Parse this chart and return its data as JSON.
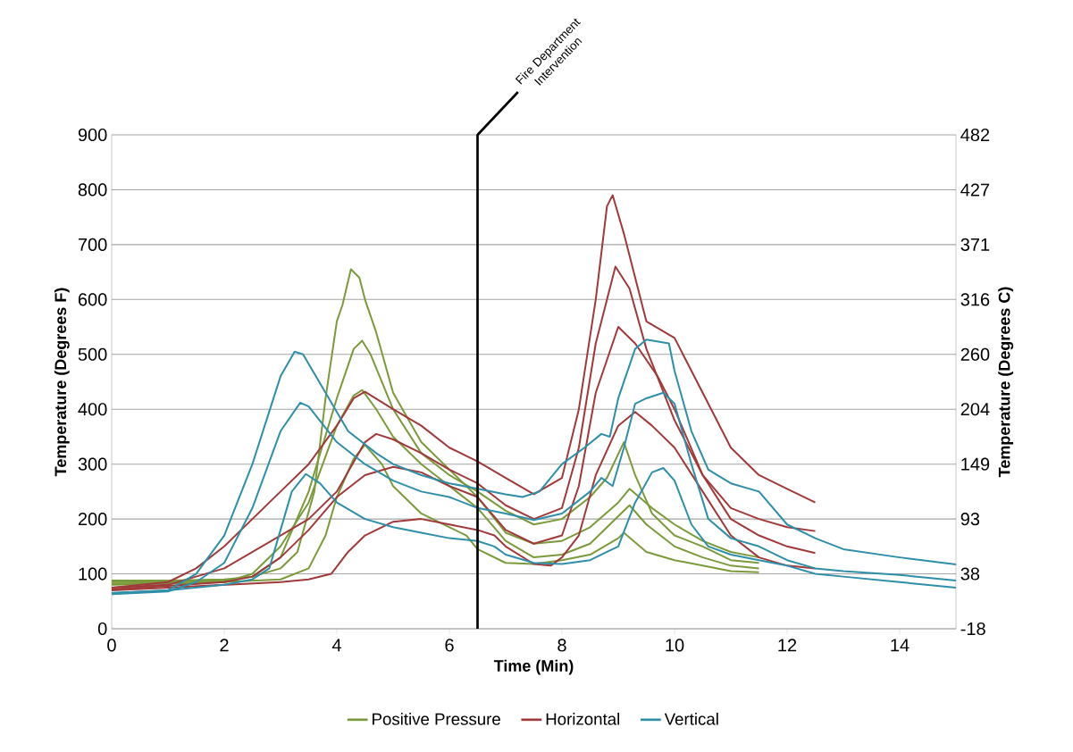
{
  "chart_data": {
    "type": "line",
    "xlabel": "Time (Min)",
    "ylabel": "Temperature (Degrees F)",
    "y2label": "Temperature (Degrees C)",
    "xlim": [
      0,
      15
    ],
    "xticks": [
      0,
      2,
      4,
      6,
      8,
      10,
      12,
      14
    ],
    "ylim": [
      0,
      900
    ],
    "yticks": [
      0,
      100,
      200,
      300,
      400,
      500,
      600,
      700,
      800,
      900
    ],
    "y2lim": [
      -17.78,
      482.22
    ],
    "y2ticks": [
      {
        "value": -17.78,
        "label": "-18"
      },
      {
        "value": 37.78,
        "label": "38"
      },
      {
        "value": 93.33,
        "label": "93"
      },
      {
        "value": 148.89,
        "label": "149"
      },
      {
        "value": 204.44,
        "label": "204"
      },
      {
        "value": 260,
        "label": "260"
      },
      {
        "value": 315.56,
        "label": "316"
      },
      {
        "value": 371.11,
        "label": "371"
      },
      {
        "value": 426.67,
        "label": "427"
      },
      {
        "value": 482.22,
        "label": "482"
      }
    ],
    "grid": "y",
    "legend": "bottom",
    "ref_lines": [
      {
        "axis": "x",
        "value": 6.5,
        "label": "Fire Department Intervention",
        "color": "#000000"
      }
    ],
    "series": [
      {
        "name": "Positive Pressure",
        "color": "#7b9a3c",
        "x": [
          0,
          1,
          2,
          2.5,
          3,
          3.3,
          3.6,
          3.8,
          4.0,
          4.1,
          4.25,
          4.4,
          4.5,
          4.7,
          5.0,
          5.5,
          6.0,
          6.5,
          7.0,
          7.5,
          8.0,
          8.5,
          9.0,
          9.2,
          9.6,
          10.0,
          10.5,
          11.0,
          11.5
        ],
        "values": [
          88,
          88,
          90,
          95,
          110,
          140,
          250,
          420,
          560,
          590,
          655,
          640,
          600,
          540,
          430,
          340,
          290,
          240,
          175,
          155,
          160,
          185,
          230,
          255,
          220,
          190,
          160,
          140,
          130
        ]
      },
      {
        "color": "#7b9a3c",
        "x": [
          0,
          1,
          2,
          2.5,
          3,
          3.5,
          4.0,
          4.3,
          4.45,
          4.6,
          5,
          5.5,
          6,
          6.5,
          7,
          7.5,
          8,
          8.5,
          8.8,
          9.1,
          9.3,
          9.6,
          10,
          10.5,
          11,
          11.5
        ],
        "values": [
          85,
          86,
          88,
          95,
          130,
          250,
          420,
          510,
          525,
          500,
          400,
          320,
          280,
          250,
          215,
          190,
          200,
          240,
          275,
          340,
          280,
          210,
          170,
          150,
          125,
          120
        ]
      },
      {
        "color": "#7b9a3c",
        "x": [
          0,
          1,
          2,
          2.5,
          3,
          3.5,
          4.0,
          4.3,
          4.45,
          4.7,
          5,
          5.5,
          6,
          6.5,
          7,
          7.5,
          8,
          8.5,
          9,
          9.2,
          9.5,
          10,
          10.5,
          11,
          11.5
        ],
        "values": [
          80,
          82,
          85,
          100,
          150,
          230,
          370,
          425,
          435,
          400,
          350,
          300,
          260,
          220,
          160,
          130,
          135,
          155,
          205,
          225,
          190,
          150,
          130,
          115,
          110
        ]
      },
      {
        "color": "#7b9a3c",
        "x": [
          0,
          1,
          2,
          3,
          3.5,
          3.8,
          4.0,
          4.3,
          4.5,
          4.8,
          5,
          5.5,
          6,
          6.3,
          6.5,
          7,
          7.5,
          8,
          8.5,
          9,
          9.1,
          9.5,
          10,
          10.5,
          11,
          11.5
        ],
        "values": [
          82,
          84,
          85,
          90,
          110,
          170,
          240,
          310,
          335,
          300,
          260,
          210,
          185,
          170,
          145,
          120,
          118,
          125,
          135,
          165,
          175,
          140,
          125,
          115,
          105,
          103
        ]
      },
      {
        "name": "Horizontal",
        "color": "#a0393a",
        "x": [
          0,
          1,
          1.5,
          2,
          2.5,
          3,
          3.5,
          4,
          4.3,
          4.5,
          5,
          5.5,
          6,
          6.5,
          7,
          7.5,
          8,
          8.3,
          8.6,
          8.8,
          8.9,
          9.1,
          9.5,
          10,
          10.5,
          11,
          11.5,
          12,
          12.5
        ],
        "values": [
          75,
          85,
          110,
          150,
          200,
          250,
          300,
          370,
          420,
          432,
          400,
          370,
          330,
          305,
          275,
          245,
          275,
          400,
          600,
          770,
          790,
          720,
          560,
          530,
          430,
          330,
          280,
          255,
          230
        ]
      },
      {
        "color": "#a0393a",
        "x": [
          0,
          1,
          2,
          2.5,
          3,
          3.5,
          4,
          4.5,
          4.7,
          5,
          5.5,
          6,
          6.5,
          7,
          7.5,
          8,
          8.3,
          8.6,
          8.95,
          9.2,
          9.5,
          10,
          10.5,
          11,
          11.5,
          12,
          12.5
        ],
        "values": [
          75,
          80,
          110,
          140,
          170,
          200,
          250,
          340,
          355,
          345,
          320,
          290,
          265,
          225,
          200,
          220,
          330,
          520,
          660,
          620,
          510,
          380,
          280,
          220,
          200,
          185,
          178
        ]
      },
      {
        "color": "#a0393a",
        "x": [
          0,
          1,
          2,
          2.5,
          3,
          3.5,
          4,
          4.5,
          5,
          5.5,
          6,
          6.5,
          7,
          7.5,
          8,
          8.3,
          8.6,
          9.0,
          9.3,
          9.7,
          10,
          10.5,
          11,
          11.5,
          12,
          12.5
        ],
        "values": [
          72,
          78,
          85,
          95,
          130,
          180,
          240,
          280,
          295,
          285,
          260,
          240,
          180,
          155,
          170,
          260,
          430,
          550,
          520,
          460,
          400,
          280,
          200,
          170,
          150,
          138
        ]
      },
      {
        "color": "#a0393a",
        "x": [
          0,
          1,
          2,
          3,
          3.5,
          3.9,
          4.2,
          4.5,
          5,
          5.5,
          6,
          6.5,
          6.8,
          7,
          7.5,
          7.8,
          8,
          8.3,
          8.6,
          9,
          9.3,
          9.6,
          10,
          10.5,
          11,
          11.5,
          12,
          12.5
        ],
        "values": [
          70,
          75,
          80,
          85,
          90,
          100,
          140,
          170,
          195,
          200,
          190,
          180,
          170,
          150,
          118,
          115,
          130,
          170,
          280,
          370,
          395,
          370,
          330,
          250,
          170,
          130,
          115,
          110
        ]
      },
      {
        "name": "Vertical",
        "color": "#2f8ea8",
        "x": [
          0,
          1,
          1.5,
          2,
          2.5,
          3,
          3.25,
          3.4,
          3.8,
          4.2,
          4.7,
          5,
          5.5,
          6,
          6.5,
          7,
          7.3,
          7.6,
          8,
          8.4,
          8.7,
          8.85,
          9,
          9.3,
          9.5,
          9.9,
          10,
          10.3,
          10.6,
          11,
          11.5,
          12,
          12.5,
          13,
          14,
          15
        ],
        "values": [
          65,
          70,
          100,
          170,
          300,
          460,
          505,
          500,
          430,
          360,
          320,
          300,
          280,
          265,
          255,
          245,
          240,
          250,
          300,
          330,
          355,
          350,
          420,
          510,
          527,
          520,
          470,
          360,
          290,
          265,
          250,
          190,
          165,
          145,
          130,
          117
        ]
      },
      {
        "color": "#2f8ea8",
        "x": [
          0,
          1,
          1.5,
          2,
          2.5,
          3,
          3.35,
          3.5,
          4,
          4.5,
          5,
          5.5,
          6,
          6.5,
          7,
          7.5,
          8,
          8.5,
          8.7,
          8.9,
          9.1,
          9.3,
          9.5,
          9.8,
          10,
          10.3,
          10.6,
          11,
          11.5,
          12,
          12.5,
          13,
          14,
          15
        ],
        "values": [
          63,
          68,
          85,
          120,
          220,
          360,
          412,
          405,
          340,
          300,
          270,
          250,
          240,
          220,
          210,
          198,
          210,
          250,
          275,
          260,
          330,
          410,
          420,
          430,
          410,
          300,
          200,
          165,
          150,
          125,
          110,
          105,
          98,
          88
        ]
      },
      {
        "color": "#2f8ea8",
        "x": [
          0,
          1,
          2,
          2.5,
          2.8,
          3,
          3.2,
          3.45,
          3.7,
          4,
          4.5,
          5,
          5.5,
          6,
          6.5,
          6.8,
          7,
          7.5,
          8,
          8.5,
          8.8,
          9,
          9.3,
          9.6,
          9.8,
          10,
          10.3,
          10.6,
          11,
          11.5,
          12,
          12.5,
          13,
          14,
          15
        ],
        "values": [
          65,
          70,
          80,
          90,
          110,
          180,
          250,
          282,
          265,
          230,
          200,
          185,
          175,
          165,
          160,
          150,
          135,
          120,
          118,
          125,
          140,
          150,
          230,
          285,
          293,
          270,
          190,
          150,
          135,
          125,
          115,
          100,
          95,
          85,
          75
        ]
      }
    ]
  }
}
